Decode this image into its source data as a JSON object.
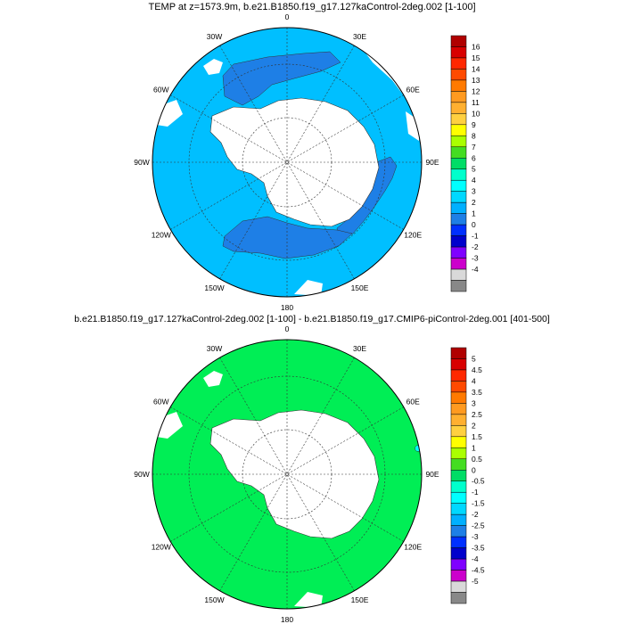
{
  "top_panel": {
    "title": "TEMP at z=1573.9m, b.e21.B1850.f19_g17.127kaControl-2deg.002 [1-100]",
    "longitude_labels": [
      "0",
      "30E",
      "60E",
      "90E",
      "120E",
      "150E",
      "180",
      "150W",
      "120W",
      "90W",
      "60W",
      "30W"
    ],
    "colorbar_labels": [
      "16",
      "15",
      "14",
      "13",
      "12",
      "11",
      "10",
      "9",
      "8",
      "7",
      "6",
      "5",
      "4",
      "3",
      "2",
      "1",
      "0",
      "-1",
      "-2",
      "-3",
      "-4"
    ],
    "colors": {
      "ocean_main": "#00bfff",
      "ocean_dark": "#1e7fe6",
      "land": "#ffffff"
    }
  },
  "bottom_panel": {
    "title": "b.e21.B1850.f19_g17.127kaControl-2deg.002 [1-100] - b.e21.B1850.f19_g17.CMIP6-piControl-2deg.001 [401-500]",
    "longitude_labels": [
      "0",
      "30E",
      "60E",
      "90E",
      "120E",
      "150E",
      "180",
      "150W",
      "120W",
      "90W",
      "60W",
      "30W"
    ],
    "colorbar_labels": [
      "5",
      "4.5",
      "4",
      "3.5",
      "3",
      "2.5",
      "2",
      "1.5",
      "1",
      "0.5",
      "0",
      "-0.5",
      "-1",
      "-1.5",
      "-2",
      "-2.5",
      "-3",
      "-3.5",
      "-4",
      "-4.5",
      "-5"
    ],
    "colors": {
      "ocean_main": "#00ee55",
      "land": "#ffffff"
    }
  },
  "colorbar_colors": [
    "#b00000",
    "#d80000",
    "#ff2800",
    "#ff4a00",
    "#ff7a00",
    "#ff9a20",
    "#ffb030",
    "#ffd040",
    "#ffff00",
    "#aaff00",
    "#44dd22",
    "#00dd66",
    "#00ffcc",
    "#00ffff",
    "#00d8ff",
    "#00b0ff",
    "#1e7fe6",
    "#0030ff",
    "#0000cc",
    "#7f00ff",
    "#cc00cc",
    "#d9d9d9",
    "#888888"
  ]
}
